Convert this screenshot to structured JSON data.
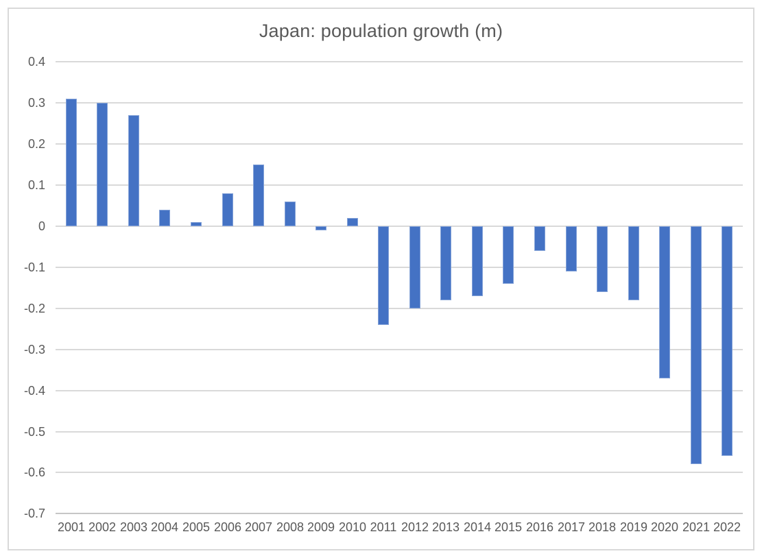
{
  "chart_data": {
    "type": "bar",
    "title": "Japan: population growth (m)",
    "categories": [
      "2001",
      "2002",
      "2003",
      "2004",
      "2005",
      "2006",
      "2007",
      "2008",
      "2009",
      "2010",
      "2011",
      "2012",
      "2013",
      "2014",
      "2015",
      "2016",
      "2017",
      "2018",
      "2019",
      "2020",
      "2021",
      "2022"
    ],
    "values": [
      0.31,
      0.3,
      0.27,
      0.04,
      0.01,
      0.08,
      0.15,
      0.06,
      -0.01,
      0.02,
      -0.24,
      -0.2,
      -0.18,
      -0.17,
      -0.14,
      -0.06,
      -0.11,
      -0.16,
      -0.18,
      -0.37,
      -0.58,
      -0.56
    ],
    "xlabel": "",
    "ylabel": "",
    "ylim": [
      -0.7,
      0.4
    ],
    "ytick_step": 0.1,
    "ytick_labels": [
      "0.4",
      "0.3",
      "0.2",
      "0.1",
      "0",
      "-0.1",
      "-0.2",
      "-0.3",
      "-0.4",
      "-0.5",
      "-0.6",
      "-0.7"
    ],
    "grid": true,
    "legend_position": "none",
    "colors": {
      "bar": "#4472c4",
      "gridline": "#d9d9d9",
      "bottom_gridline": "#c6c6c6",
      "axis_labels": "#595959",
      "title": "#595959",
      "chart_border": "#d9d9d9",
      "background": "#ffffff"
    }
  }
}
